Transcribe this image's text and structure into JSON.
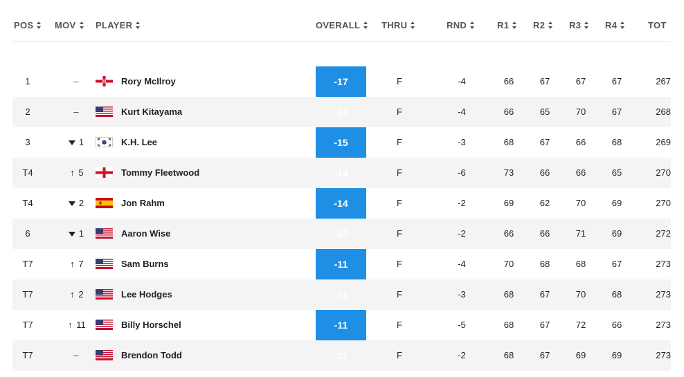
{
  "header": {
    "pos": "POS",
    "mov": "MOV",
    "player": "PLAYER",
    "overall": "OVERALL",
    "thru": "THRU",
    "rnd": "RND",
    "r1": "R1",
    "r2": "R2",
    "r3": "R3",
    "r4": "R4",
    "tot": "TOT"
  },
  "colors": {
    "overall_bg": "#1f8fe6",
    "alt_row": "#f4f4f4"
  },
  "rows": [
    {
      "pos": "1",
      "mov_dir": "none",
      "mov": "–",
      "flag": "northern-ireland-flag-icon",
      "player": "Rory McIlroy",
      "overall": "-17",
      "thru": "F",
      "rnd": "-4",
      "r1": "66",
      "r2": "67",
      "r3": "67",
      "r4": "67",
      "tot": "267"
    },
    {
      "pos": "2",
      "mov_dir": "none",
      "mov": "–",
      "flag": "usa-flag-icon",
      "player": "Kurt Kitayama",
      "overall": "-16",
      "thru": "F",
      "rnd": "-4",
      "r1": "66",
      "r2": "65",
      "r3": "70",
      "r4": "67",
      "tot": "268"
    },
    {
      "pos": "3",
      "mov_dir": "down",
      "mov": "1",
      "flag": "south-korea-flag-icon",
      "player": "K.H. Lee",
      "overall": "-15",
      "thru": "F",
      "rnd": "-3",
      "r1": "68",
      "r2": "67",
      "r3": "66",
      "r4": "68",
      "tot": "269"
    },
    {
      "pos": "T4",
      "mov_dir": "up",
      "mov": "5",
      "flag": "england-flag-icon",
      "player": "Tommy Fleetwood",
      "overall": "-14",
      "thru": "F",
      "rnd": "-6",
      "r1": "73",
      "r2": "66",
      "r3": "66",
      "r4": "65",
      "tot": "270"
    },
    {
      "pos": "T4",
      "mov_dir": "down",
      "mov": "2",
      "flag": "spain-flag-icon",
      "player": "Jon Rahm",
      "overall": "-14",
      "thru": "F",
      "rnd": "-2",
      "r1": "69",
      "r2": "62",
      "r3": "70",
      "r4": "69",
      "tot": "270"
    },
    {
      "pos": "6",
      "mov_dir": "down",
      "mov": "1",
      "flag": "usa-flag-icon",
      "player": "Aaron Wise",
      "overall": "-12",
      "thru": "F",
      "rnd": "-2",
      "r1": "66",
      "r2": "66",
      "r3": "71",
      "r4": "69",
      "tot": "272"
    },
    {
      "pos": "T7",
      "mov_dir": "up",
      "mov": "7",
      "flag": "usa-flag-icon",
      "player": "Sam Burns",
      "overall": "-11",
      "thru": "F",
      "rnd": "-4",
      "r1": "70",
      "r2": "68",
      "r3": "68",
      "r4": "67",
      "tot": "273"
    },
    {
      "pos": "T7",
      "mov_dir": "up",
      "mov": "2",
      "flag": "usa-flag-icon",
      "player": "Lee Hodges",
      "overall": "-11",
      "thru": "F",
      "rnd": "-3",
      "r1": "68",
      "r2": "67",
      "r3": "70",
      "r4": "68",
      "tot": "273"
    },
    {
      "pos": "T7",
      "mov_dir": "up",
      "mov": "11",
      "flag": "usa-flag-icon",
      "player": "Billy Horschel",
      "overall": "-11",
      "thru": "F",
      "rnd": "-5",
      "r1": "68",
      "r2": "67",
      "r3": "72",
      "r4": "66",
      "tot": "273"
    },
    {
      "pos": "T7",
      "mov_dir": "none",
      "mov": "–",
      "flag": "usa-flag-icon",
      "player": "Brendon Todd",
      "overall": "-11",
      "thru": "F",
      "rnd": "-2",
      "r1": "68",
      "r2": "67",
      "r3": "69",
      "r4": "69",
      "tot": "273"
    }
  ]
}
